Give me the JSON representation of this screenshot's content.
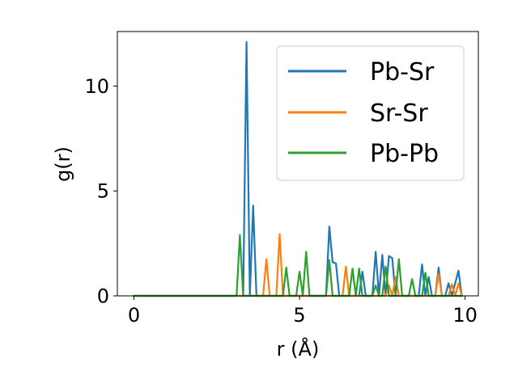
{
  "chart_data": {
    "type": "line",
    "xlabel": "r (Å)",
    "ylabel": "g(r)",
    "xlim": [
      -0.5,
      10.4
    ],
    "ylim": [
      0,
      12.6
    ],
    "xticks": [
      0,
      5,
      10
    ],
    "yticks": [
      0,
      5,
      10
    ],
    "xtick_labels": [
      "0",
      "5",
      "10"
    ],
    "ytick_labels": [
      "0",
      "5",
      "10"
    ],
    "grid": false,
    "legend_position": "top-right",
    "x": [
      0,
      0.1,
      0.2,
      0.3,
      0.4,
      0.5,
      0.6,
      0.7,
      0.8,
      0.9,
      1.0,
      1.1,
      1.2,
      1.3,
      1.4,
      1.5,
      1.6,
      1.7,
      1.8,
      1.9,
      2.0,
      2.1,
      2.2,
      2.3,
      2.4,
      2.5,
      2.6,
      2.7,
      2.8,
      2.9,
      3.0,
      3.1,
      3.2,
      3.3,
      3.4,
      3.5,
      3.6,
      3.7,
      3.8,
      3.9,
      4.0,
      4.1,
      4.2,
      4.3,
      4.4,
      4.5,
      4.6,
      4.7,
      4.8,
      4.9,
      5.0,
      5.1,
      5.2,
      5.3,
      5.4,
      5.5,
      5.6,
      5.7,
      5.8,
      5.9,
      6.0,
      6.1,
      6.2,
      6.3,
      6.4,
      6.5,
      6.6,
      6.7,
      6.8,
      6.9,
      7.0,
      7.1,
      7.2,
      7.3,
      7.4,
      7.5,
      7.6,
      7.7,
      7.8,
      7.9,
      8.0,
      8.1,
      8.2,
      8.3,
      8.4,
      8.5,
      8.6,
      8.7,
      8.8,
      8.9,
      9.0,
      9.1,
      9.2,
      9.3,
      9.4,
      9.5,
      9.6,
      9.7,
      9.8,
      9.9
    ],
    "series": [
      {
        "name": "Pb-Sr",
        "color": "#1f77b4",
        "values": [
          0,
          0,
          0,
          0,
          0,
          0,
          0,
          0,
          0,
          0,
          0,
          0,
          0,
          0,
          0,
          0,
          0,
          0,
          0,
          0,
          0,
          0,
          0,
          0,
          0,
          0,
          0,
          0,
          0,
          0,
          0,
          0,
          0,
          0,
          12.1,
          0,
          4.3,
          0,
          0,
          0,
          0,
          0,
          0,
          0,
          0,
          0,
          0,
          0,
          0,
          0,
          0,
          0,
          0,
          0,
          0,
          0,
          0,
          0,
          0,
          3.3,
          1.6,
          1.55,
          0,
          0,
          0,
          0,
          0,
          0,
          0,
          1.15,
          0,
          0,
          0,
          2.1,
          0,
          1.95,
          0,
          1.9,
          1.8,
          0,
          0,
          0,
          0,
          0,
          0,
          0,
          0,
          1.5,
          0,
          0.9,
          0,
          0,
          1.35,
          0,
          0,
          0.6,
          0,
          0.6,
          1.2,
          0
        ]
      },
      {
        "name": "Sr-Sr",
        "color": "#ff7f0e",
        "values": [
          0,
          0,
          0,
          0,
          0,
          0,
          0,
          0,
          0,
          0,
          0,
          0,
          0,
          0,
          0,
          0,
          0,
          0,
          0,
          0,
          0,
          0,
          0,
          0,
          0,
          0,
          0,
          0,
          0,
          0,
          0,
          0,
          0,
          0,
          0,
          0,
          0,
          0,
          0,
          0,
          1.75,
          0,
          0,
          0,
          2.95,
          0,
          0,
          0,
          0,
          0,
          0,
          0,
          0,
          0,
          0,
          0,
          0,
          0,
          0,
          0,
          0,
          0,
          0,
          0,
          1.4,
          0,
          0,
          0,
          0,
          0,
          0,
          0,
          0,
          0,
          0,
          0,
          0,
          0.5,
          0,
          0.9,
          0,
          0,
          0,
          0,
          0,
          0,
          0,
          0,
          0,
          0,
          0,
          0,
          1.05,
          0,
          0,
          0,
          0.55,
          0,
          0.6,
          0
        ]
      },
      {
        "name": "Pb-Pb",
        "color": "#2ca02c",
        "values": [
          0,
          0,
          0,
          0,
          0,
          0,
          0,
          0,
          0,
          0,
          0,
          0,
          0,
          0,
          0,
          0,
          0,
          0,
          0,
          0,
          0,
          0,
          0,
          0,
          0,
          0,
          0,
          0,
          0,
          0,
          0,
          0,
          2.9,
          0,
          0,
          0,
          0,
          0,
          0,
          0,
          0,
          0,
          0,
          0,
          0,
          0,
          1.35,
          0,
          0,
          0,
          1.15,
          0,
          2.1,
          0,
          0,
          0,
          0,
          0,
          0,
          1.7,
          0,
          0,
          0,
          0,
          0,
          0,
          1.3,
          0,
          1.3,
          0,
          0,
          0,
          0,
          0.5,
          0,
          0,
          1.4,
          0,
          0,
          0,
          1.75,
          0,
          0,
          0,
          0.8,
          0,
          0,
          0,
          1.1,
          0,
          0,
          0,
          0,
          0,
          0,
          0,
          0,
          0,
          0,
          0
        ]
      }
    ]
  }
}
